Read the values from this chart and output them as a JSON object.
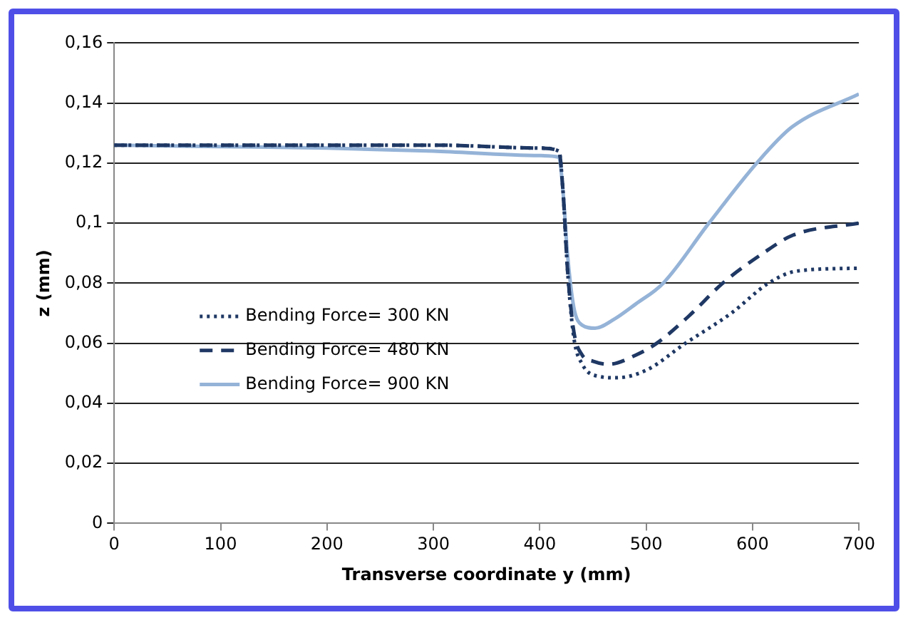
{
  "chart_data": {
    "type": "line",
    "xlabel": "Transverse coordinate y (mm)",
    "ylabel": "z (mm)",
    "xlim": [
      0,
      700
    ],
    "xticks": [
      0,
      100,
      200,
      300,
      400,
      500,
      600,
      700
    ],
    "ylim": [
      0,
      0.16
    ],
    "yticks": [
      {
        "value": 0,
        "label": "0"
      },
      {
        "value": 0.02,
        "label": "0,02"
      },
      {
        "value": 0.04,
        "label": "0,04"
      },
      {
        "value": 0.06,
        "label": "0,06"
      },
      {
        "value": 0.08,
        "label": "0,08"
      },
      {
        "value": 0.1,
        "label": "0,1"
      },
      {
        "value": 0.12,
        "label": "0,12"
      },
      {
        "value": 0.14,
        "label": "0,14"
      },
      {
        "value": 0.16,
        "label": "0,16"
      }
    ],
    "grid": "y",
    "legend": "left",
    "marker": "none",
    "series": [
      {
        "name": "Bending Force= 300 KN",
        "color": "#1f3864",
        "line_style": "dotted",
        "x": [
          0,
          100,
          200,
          300,
          400,
          418,
          422,
          426,
          432,
          440,
          455,
          472,
          500,
          537,
          580,
          615,
          641,
          700
        ],
        "values": [
          0.126,
          0.126,
          0.126,
          0.126,
          0.125,
          0.124,
          0.11,
          0.085,
          0.062,
          0.053,
          0.049,
          0.0485,
          0.051,
          0.06,
          0.07,
          0.08,
          0.084,
          0.085
        ]
      },
      {
        "name": "Bending Force= 480 KN",
        "color": "#1f3864",
        "line_style": "dashed",
        "x": [
          0,
          100,
          200,
          300,
          400,
          418,
          422,
          426,
          432,
          440,
          450,
          465,
          490,
          510,
          540,
          572,
          610,
          638,
          700
        ],
        "values": [
          0.126,
          0.126,
          0.126,
          0.126,
          0.125,
          0.124,
          0.11,
          0.085,
          0.064,
          0.056,
          0.054,
          0.053,
          0.056,
          0.06,
          0.069,
          0.08,
          0.09,
          0.096,
          0.1
        ]
      },
      {
        "name": "Bending Force= 900 KN",
        "color": "#95b3d7",
        "line_style": "solid",
        "x": [
          0,
          100,
          200,
          300,
          400,
          418,
          422,
          426,
          432,
          440,
          452,
          470,
          490,
          516,
          559,
          604,
          637,
          700
        ],
        "values": [
          0.126,
          0.1255,
          0.125,
          0.124,
          0.1225,
          0.122,
          0.11,
          0.09,
          0.072,
          0.066,
          0.065,
          0.068,
          0.073,
          0.08,
          0.1,
          0.12,
          0.132,
          0.143
        ]
      }
    ]
  }
}
